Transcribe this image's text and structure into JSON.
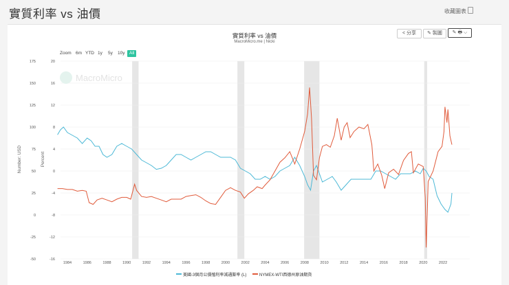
{
  "header": {
    "title": "實質利率 vs 油價",
    "collect_label": "收藏圖表"
  },
  "toolbar": {
    "share_label": "分享",
    "draw_label": "製圖",
    "edit_label": "✎ 🖶 ⌵"
  },
  "range_buttons": [
    "Zoom",
    "6m",
    "YTD",
    "1y",
    "5y",
    "10y",
    "All"
  ],
  "active_range": "All",
  "watermark": "MacroMicro",
  "colors": {
    "oil": "#e05a3a",
    "rate": "#4bb8d6",
    "accent": "#2ec4a0",
    "recession": "#e6e6e6"
  },
  "chart_data": {
    "type": "line",
    "title": "實質利率 vs 油價",
    "subtitle": "MacroMicro.me | Nicki",
    "left_axis_label": "Number: USD",
    "left_axis_ticks": [
      175,
      150,
      125,
      100,
      75,
      50,
      25,
      0,
      -25,
      -50
    ],
    "right_axis_label": "Percent",
    "right_axis_ticks": [
      20,
      16,
      12,
      8,
      4,
      0,
      -4,
      -8,
      -12,
      -16
    ],
    "x_ticks": [
      "1984",
      "1986",
      "1988",
      "1990",
      "1992",
      "1994",
      "1996",
      "1998",
      "2000",
      "2002",
      "2004",
      "2006",
      "2008",
      "2010",
      "2012",
      "2014",
      "2016",
      "2018",
      "2020",
      "2022"
    ],
    "recessions": [
      [
        1990.55,
        1991.2
      ],
      [
        2001.2,
        2001.9
      ],
      [
        2007.95,
        2009.5
      ],
      [
        2020.1,
        2020.4
      ]
    ],
    "series": [
      {
        "name": "美國-3個月公債殖利率減通膨率 (L)",
        "axis": "right",
        "points": [
          [
            1983.0,
            6.6
          ],
          [
            1983.3,
            7.5
          ],
          [
            1983.6,
            8.0
          ],
          [
            1984.0,
            7.0
          ],
          [
            1984.5,
            6.5
          ],
          [
            1985.0,
            6.0
          ],
          [
            1985.5,
            5.0
          ],
          [
            1986.0,
            6.0
          ],
          [
            1986.4,
            5.5
          ],
          [
            1986.8,
            4.5
          ],
          [
            1987.2,
            4.5
          ],
          [
            1987.6,
            3.0
          ],
          [
            1988.0,
            2.5
          ],
          [
            1988.5,
            3.0
          ],
          [
            1989.0,
            4.5
          ],
          [
            1989.5,
            5.0
          ],
          [
            1990.0,
            4.5
          ],
          [
            1990.5,
            4.0
          ],
          [
            1991.0,
            3.0
          ],
          [
            1991.5,
            2.0
          ],
          [
            1992.0,
            1.5
          ],
          [
            1992.5,
            1.0
          ],
          [
            1993.0,
            0.3
          ],
          [
            1993.5,
            0.5
          ],
          [
            1994.0,
            1.0
          ],
          [
            1994.5,
            2.0
          ],
          [
            1995.0,
            3.0
          ],
          [
            1995.5,
            3.0
          ],
          [
            1996.0,
            2.5
          ],
          [
            1996.5,
            2.0
          ],
          [
            1997.0,
            2.5
          ],
          [
            1997.5,
            3.0
          ],
          [
            1998.0,
            3.5
          ],
          [
            1998.5,
            3.5
          ],
          [
            1999.0,
            3.0
          ],
          [
            1999.5,
            2.5
          ],
          [
            2000.0,
            2.5
          ],
          [
            2000.5,
            2.5
          ],
          [
            2001.0,
            2.0
          ],
          [
            2001.5,
            0.5
          ],
          [
            2002.0,
            0.0
          ],
          [
            2002.5,
            -0.5
          ],
          [
            2003.0,
            -1.5
          ],
          [
            2003.5,
            -1.5
          ],
          [
            2004.0,
            -1.0
          ],
          [
            2004.5,
            -1.5
          ],
          [
            2005.0,
            -1.0
          ],
          [
            2005.5,
            0.0
          ],
          [
            2006.0,
            0.5
          ],
          [
            2006.5,
            1.0
          ],
          [
            2007.0,
            2.5
          ],
          [
            2007.5,
            1.0
          ],
          [
            2008.0,
            -1.0
          ],
          [
            2008.3,
            -2.5
          ],
          [
            2008.6,
            -3.5
          ],
          [
            2008.9,
            0.0
          ],
          [
            2009.2,
            1.0
          ],
          [
            2009.5,
            -0.5
          ],
          [
            2009.8,
            -2.0
          ],
          [
            2010.3,
            -1.5
          ],
          [
            2010.8,
            -1.0
          ],
          [
            2011.2,
            -2.0
          ],
          [
            2011.7,
            -3.5
          ],
          [
            2012.2,
            -2.5
          ],
          [
            2012.7,
            -1.5
          ],
          [
            2013.2,
            -1.5
          ],
          [
            2013.7,
            -1.5
          ],
          [
            2014.2,
            -1.5
          ],
          [
            2014.7,
            -1.5
          ],
          [
            2015.2,
            0.0
          ],
          [
            2015.7,
            0.0
          ],
          [
            2016.2,
            -0.5
          ],
          [
            2016.7,
            -1.0
          ],
          [
            2017.2,
            -1.5
          ],
          [
            2017.7,
            -0.5
          ],
          [
            2018.2,
            -0.5
          ],
          [
            2018.7,
            -0.5
          ],
          [
            2019.2,
            0.0
          ],
          [
            2019.7,
            -0.5
          ],
          [
            2020.0,
            0.5
          ],
          [
            2020.3,
            0.0
          ],
          [
            2020.6,
            -1.0
          ],
          [
            2021.0,
            -1.5
          ],
          [
            2021.4,
            -4.5
          ],
          [
            2021.8,
            -6.0
          ],
          [
            2022.2,
            -7.0
          ],
          [
            2022.5,
            -7.5
          ],
          [
            2022.8,
            -6.0
          ],
          [
            2022.9,
            -4.0
          ]
        ]
      },
      {
        "name": "NYMEX-WTI西德州原油期貨",
        "axis": "left",
        "points": [
          [
            1983.0,
            30
          ],
          [
            1983.5,
            30
          ],
          [
            1984.0,
            29
          ],
          [
            1984.5,
            29
          ],
          [
            1985.0,
            27
          ],
          [
            1985.5,
            28
          ],
          [
            1985.9,
            27
          ],
          [
            1986.2,
            14
          ],
          [
            1986.6,
            12
          ],
          [
            1987.0,
            17
          ],
          [
            1987.5,
            19
          ],
          [
            1988.0,
            17
          ],
          [
            1988.5,
            15
          ],
          [
            1989.0,
            18
          ],
          [
            1989.5,
            20
          ],
          [
            1990.0,
            20
          ],
          [
            1990.4,
            18
          ],
          [
            1990.8,
            35
          ],
          [
            1991.0,
            28
          ],
          [
            1991.5,
            21
          ],
          [
            1992.0,
            20
          ],
          [
            1992.5,
            21
          ],
          [
            1993.0,
            19
          ],
          [
            1993.5,
            17
          ],
          [
            1994.0,
            15
          ],
          [
            1994.5,
            18
          ],
          [
            1995.0,
            18
          ],
          [
            1995.5,
            18
          ],
          [
            1996.0,
            21
          ],
          [
            1996.5,
            22
          ],
          [
            1997.0,
            23
          ],
          [
            1997.5,
            20
          ],
          [
            1998.0,
            16
          ],
          [
            1998.5,
            13
          ],
          [
            1999.0,
            12
          ],
          [
            1999.5,
            20
          ],
          [
            2000.0,
            28
          ],
          [
            2000.5,
            31
          ],
          [
            2001.0,
            28
          ],
          [
            2001.5,
            26
          ],
          [
            2001.9,
            19
          ],
          [
            2002.3,
            24
          ],
          [
            2002.8,
            28
          ],
          [
            2003.2,
            32
          ],
          [
            2003.7,
            30
          ],
          [
            2004.0,
            34
          ],
          [
            2004.5,
            40
          ],
          [
            2005.0,
            50
          ],
          [
            2005.5,
            60
          ],
          [
            2006.0,
            65
          ],
          [
            2006.5,
            72
          ],
          [
            2007.0,
            58
          ],
          [
            2007.5,
            75
          ],
          [
            2008.0,
            95
          ],
          [
            2008.3,
            115
          ],
          [
            2008.5,
            145
          ],
          [
            2008.7,
            110
          ],
          [
            2008.9,
            45
          ],
          [
            2009.2,
            40
          ],
          [
            2009.5,
            65
          ],
          [
            2009.8,
            78
          ],
          [
            2010.2,
            80
          ],
          [
            2010.6,
            77
          ],
          [
            2011.0,
            90
          ],
          [
            2011.3,
            110
          ],
          [
            2011.7,
            85
          ],
          [
            2012.0,
            100
          ],
          [
            2012.3,
            105
          ],
          [
            2012.6,
            88
          ],
          [
            2013.0,
            95
          ],
          [
            2013.5,
            100
          ],
          [
            2014.0,
            98
          ],
          [
            2014.4,
            103
          ],
          [
            2014.8,
            80
          ],
          [
            2015.0,
            50
          ],
          [
            2015.4,
            58
          ],
          [
            2015.8,
            45
          ],
          [
            2016.1,
            30
          ],
          [
            2016.5,
            48
          ],
          [
            2017.0,
            52
          ],
          [
            2017.5,
            46
          ],
          [
            2018.0,
            62
          ],
          [
            2018.5,
            70
          ],
          [
            2018.8,
            72
          ],
          [
            2019.0,
            48
          ],
          [
            2019.5,
            58
          ],
          [
            2020.0,
            55
          ],
          [
            2020.2,
            20
          ],
          [
            2020.3,
            -37
          ],
          [
            2020.5,
            38
          ],
          [
            2021.0,
            50
          ],
          [
            2021.5,
            72
          ],
          [
            2021.9,
            78
          ],
          [
            2022.1,
            95
          ],
          [
            2022.2,
            123
          ],
          [
            2022.4,
            105
          ],
          [
            2022.5,
            120
          ],
          [
            2022.7,
            90
          ],
          [
            2022.9,
            80
          ]
        ]
      }
    ]
  }
}
